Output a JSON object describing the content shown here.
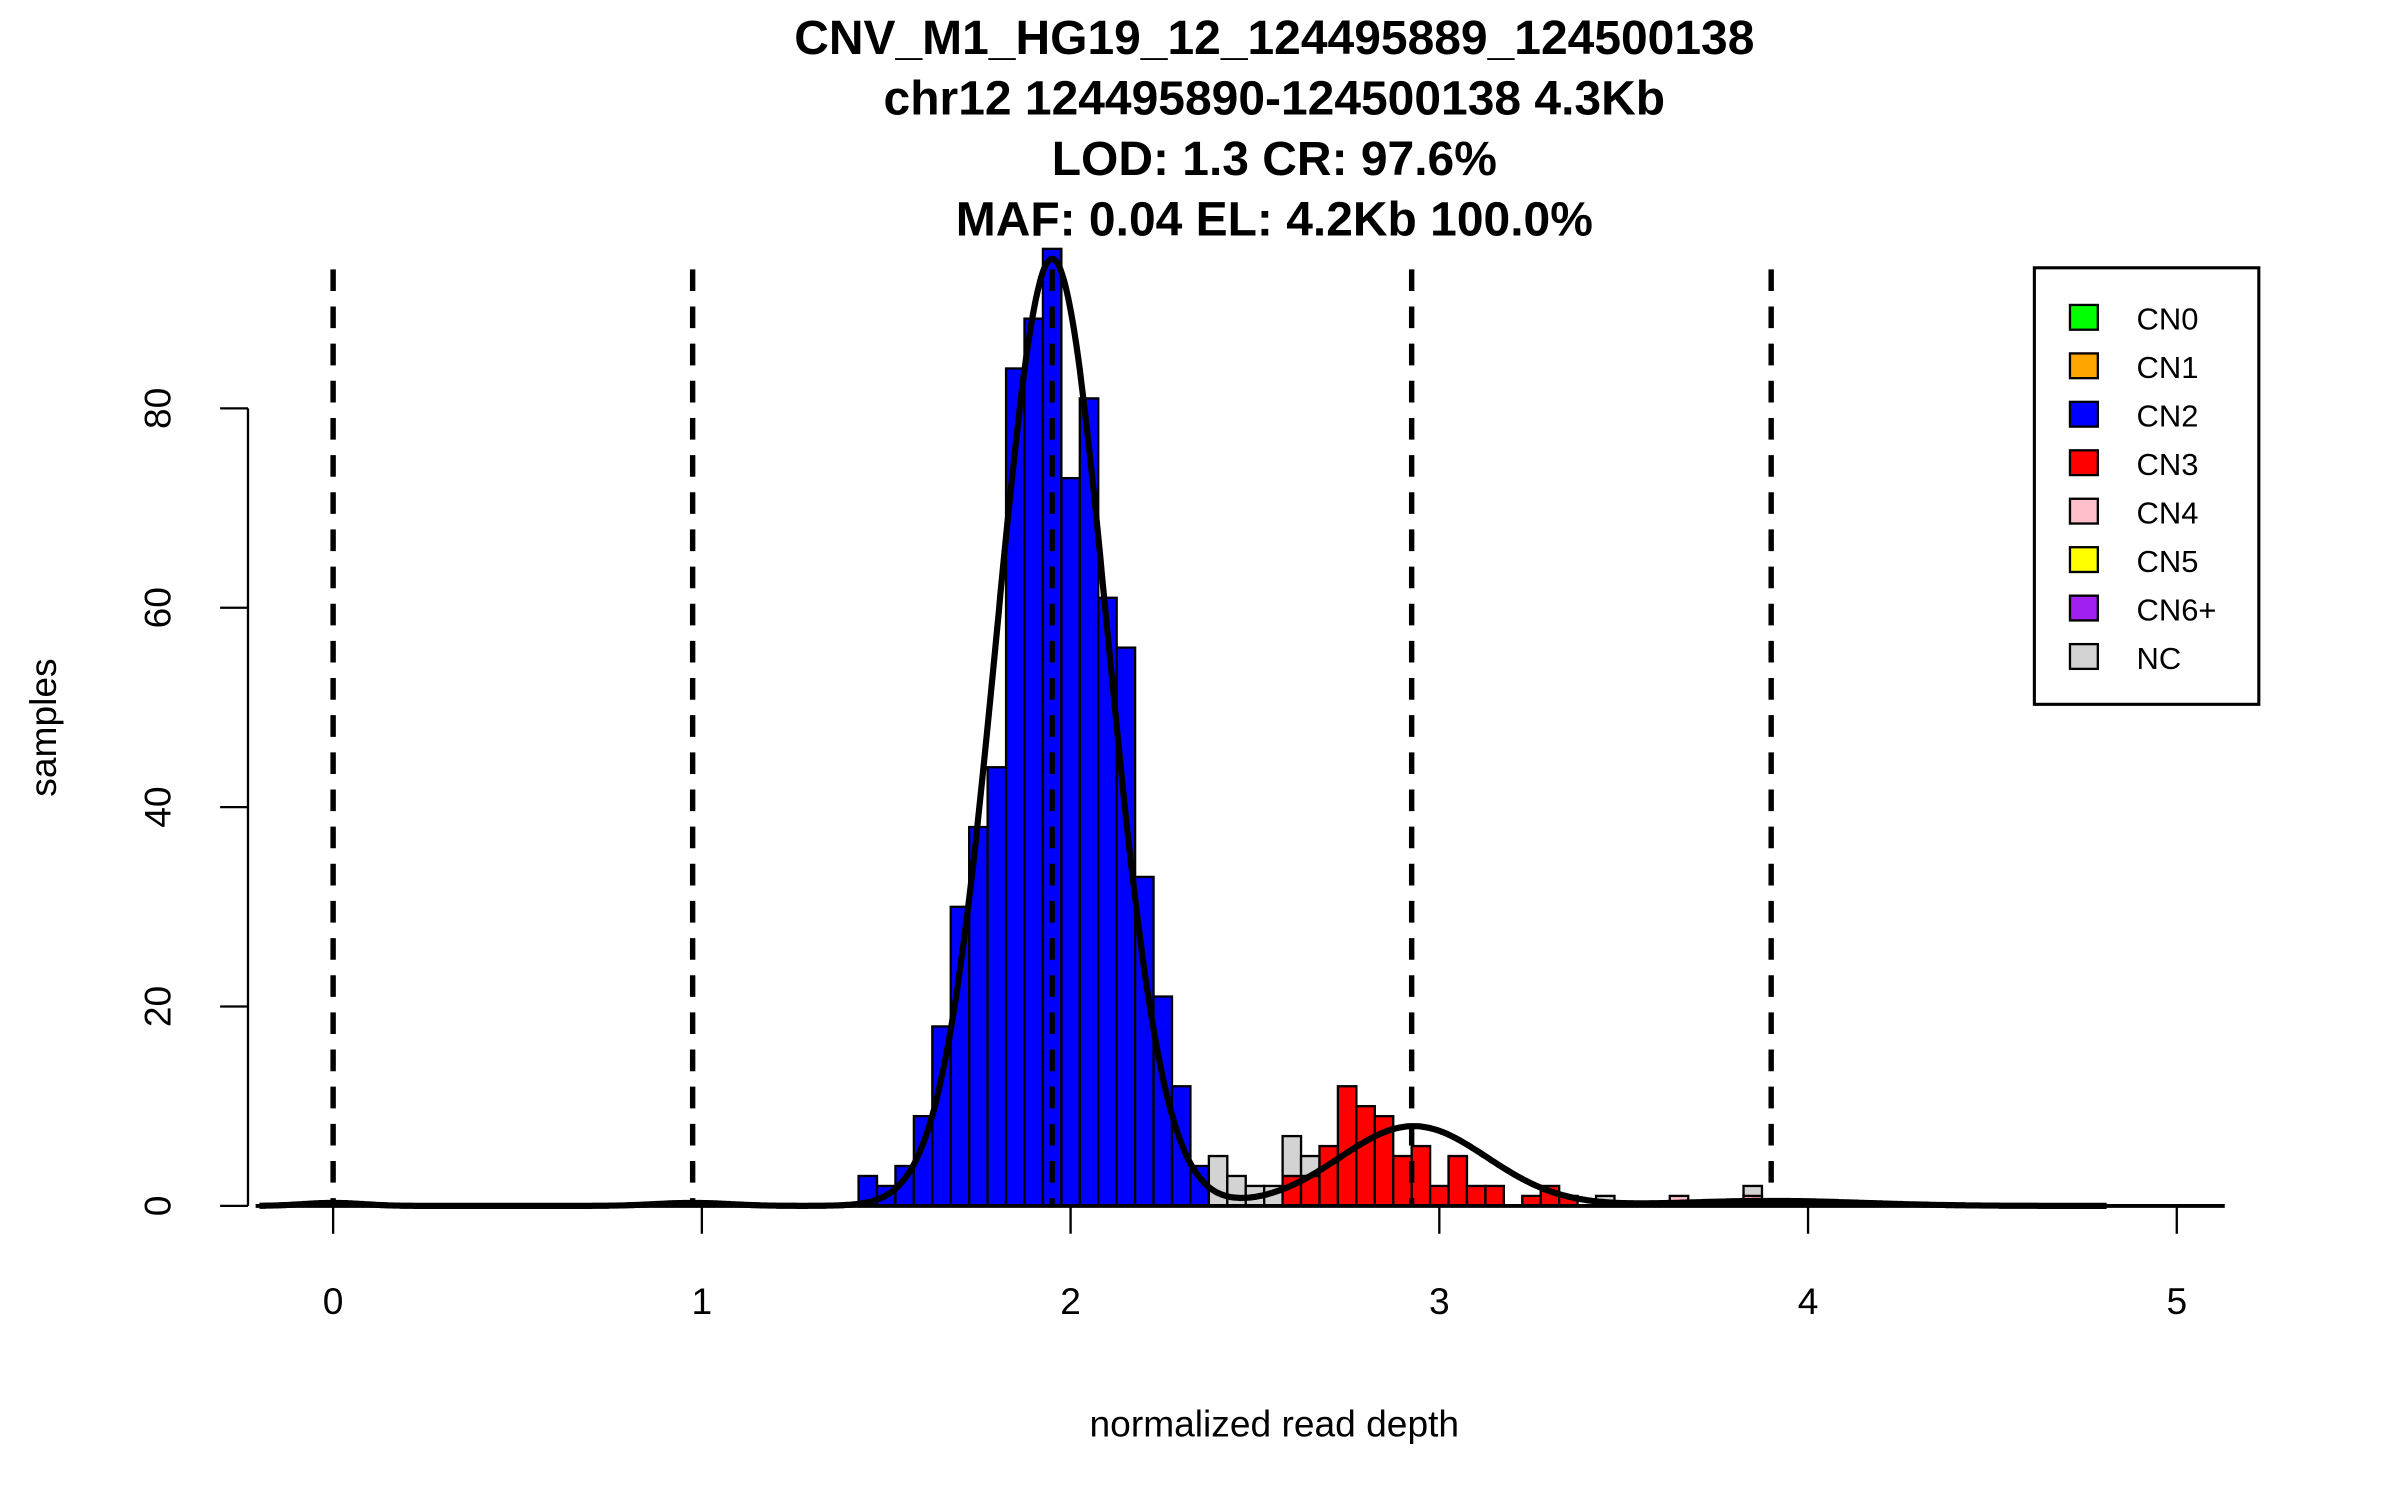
{
  "chart_data": {
    "type": "bar",
    "title_lines": [
      "CNV_M1_HG19_12_124495889_124500138",
      "chr12 124495890-124500138 4.3Kb",
      "LOD: 1.3 CR: 97.6%",
      "MAF: 0.04 EL: 4.2Kb 100.0%"
    ],
    "xlabel": "normalized read depth",
    "ylabel": "samples",
    "xlim": [
      -0.2,
      5.1
    ],
    "ylim": [
      0,
      96
    ],
    "x_ticks": [
      "0",
      "1",
      "2",
      "3",
      "4",
      "5"
    ],
    "y_ticks": [
      "0",
      "20",
      "40",
      "60",
      "80"
    ],
    "bin_width": 0.05,
    "stack_order": [
      "CN2",
      "CN3",
      "CN4",
      "NC"
    ],
    "colors": {
      "CN0": "#00ff00",
      "CN1": "#ffa500",
      "CN2": "#0000ff",
      "CN3": "#ff0000",
      "CN4": "#ffc0cb",
      "CN5": "#ffff00",
      "CN6+": "#a020f0",
      "NC": "#d3d3d3"
    },
    "bins": [
      {
        "x": 1.45,
        "CN2": 3
      },
      {
        "x": 1.5,
        "CN2": 2
      },
      {
        "x": 1.55,
        "CN2": 4
      },
      {
        "x": 1.6,
        "CN2": 9
      },
      {
        "x": 1.65,
        "CN2": 18
      },
      {
        "x": 1.7,
        "CN2": 30
      },
      {
        "x": 1.75,
        "CN2": 38
      },
      {
        "x": 1.8,
        "CN2": 44
      },
      {
        "x": 1.85,
        "CN2": 84
      },
      {
        "x": 1.9,
        "CN2": 89
      },
      {
        "x": 1.95,
        "CN2": 96
      },
      {
        "x": 2.0,
        "CN2": 73
      },
      {
        "x": 2.05,
        "CN2": 81
      },
      {
        "x": 2.1,
        "CN2": 61
      },
      {
        "x": 2.15,
        "CN2": 56
      },
      {
        "x": 2.2,
        "CN2": 33
      },
      {
        "x": 2.25,
        "CN2": 21
      },
      {
        "x": 2.3,
        "CN2": 12
      },
      {
        "x": 2.35,
        "CN2": 4
      },
      {
        "x": 2.4,
        "NC": 5
      },
      {
        "x": 2.45,
        "NC": 3
      },
      {
        "x": 2.5,
        "NC": 2
      },
      {
        "x": 2.55,
        "NC": 2
      },
      {
        "x": 2.6,
        "CN3": 3,
        "NC": 4
      },
      {
        "x": 2.65,
        "CN3": 3,
        "NC": 2
      },
      {
        "x": 2.7,
        "CN3": 6
      },
      {
        "x": 2.75,
        "CN3": 12
      },
      {
        "x": 2.8,
        "CN3": 10
      },
      {
        "x": 2.85,
        "CN3": 9
      },
      {
        "x": 2.9,
        "CN3": 5
      },
      {
        "x": 2.95,
        "CN3": 6
      },
      {
        "x": 3.0,
        "CN3": 2
      },
      {
        "x": 3.05,
        "CN3": 5
      },
      {
        "x": 3.1,
        "CN3": 2
      },
      {
        "x": 3.15,
        "CN3": 2
      },
      {
        "x": 3.25,
        "CN3": 1
      },
      {
        "x": 3.3,
        "CN3": 2
      },
      {
        "x": 3.35,
        "CN3": 1
      },
      {
        "x": 3.45,
        "NC": 1
      },
      {
        "x": 3.65,
        "CN4": 1
      },
      {
        "x": 3.85,
        "CN4": 1,
        "NC": 1
      }
    ],
    "zero_bins_ranges": [
      [
        -0.21,
        0.21
      ],
      [
        0.52,
        4.81
      ]
    ],
    "dashed_lines_x": [
      0,
      0.975,
      1.95,
      2.925,
      3.9
    ],
    "fit_curve": [
      {
        "mean": 1.95,
        "sd": 0.15,
        "peak": 95
      },
      {
        "mean": 2.93,
        "sd": 0.2,
        "peak": 8
      },
      {
        "mean": 0,
        "sd": 0.08,
        "peak": 0.3
      },
      {
        "mean": 0.975,
        "sd": 0.1,
        "peak": 0.3
      },
      {
        "mean": 3.9,
        "sd": 0.25,
        "peak": 0.5
      }
    ],
    "legend": {
      "placement": "top-right",
      "entries": [
        "CN0",
        "CN1",
        "CN2",
        "CN3",
        "CN4",
        "CN5",
        "CN6+",
        "NC"
      ]
    }
  }
}
